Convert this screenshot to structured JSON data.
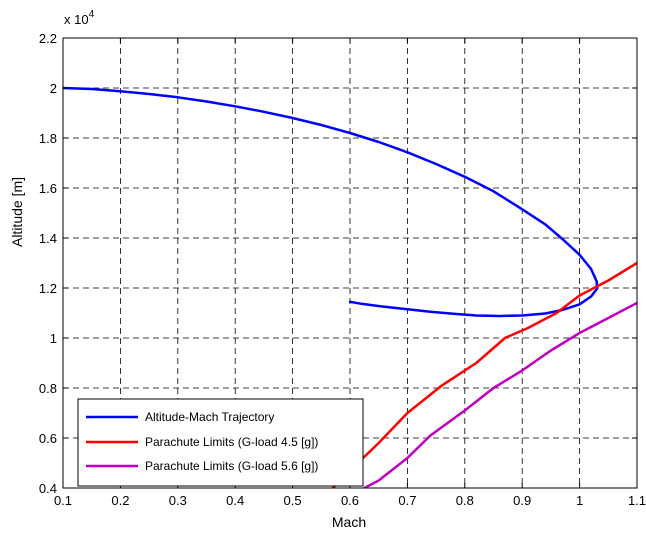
{
  "chart_data": {
    "type": "line",
    "xlabel": "Mach",
    "ylabel": "Altitude [m]",
    "y_exponent_label": {
      "base": "x 10",
      "exp": "4"
    },
    "xlim": [
      0.1,
      1.1
    ],
    "ylim": [
      0.4,
      2.2
    ],
    "xticks": [
      0.1,
      0.2,
      0.3,
      0.4,
      0.5,
      0.6,
      0.7,
      0.8,
      0.9,
      1,
      1.1
    ],
    "xtick_labels": [
      "0.1",
      "0.2",
      "0.3",
      "0.4",
      "0.5",
      "0.6",
      "0.7",
      "0.8",
      "0.9",
      "1",
      "1.1"
    ],
    "yticks": [
      0.4,
      0.6,
      0.8,
      1.0,
      1.2,
      1.4,
      1.6,
      1.8,
      2.0,
      2.2
    ],
    "ytick_labels": [
      "0.4",
      "0.6",
      "0.8",
      "1",
      "1.2",
      "1.4",
      "1.6",
      "1.8",
      "2",
      "2.2"
    ],
    "grid": true,
    "grid_style": "dashed",
    "legend_position": "bottom-left",
    "series": [
      {
        "name": "Altitude-Mach Trajectory",
        "color": "#0000ff",
        "x": [
          0.1,
          0.15,
          0.2,
          0.25,
          0.3,
          0.35,
          0.4,
          0.45,
          0.5,
          0.55,
          0.6,
          0.65,
          0.7,
          0.75,
          0.8,
          0.85,
          0.9,
          0.94,
          0.97,
          1.0,
          1.02,
          1.03,
          1.03,
          1.02,
          1.0,
          0.97,
          0.94,
          0.9,
          0.86,
          0.82,
          0.78,
          0.74,
          0.7,
          0.66,
          0.62,
          0.6
        ],
        "y": [
          2.0,
          1.996,
          1.987,
          1.976,
          1.963,
          1.946,
          1.927,
          1.905,
          1.88,
          1.852,
          1.82,
          1.784,
          1.743,
          1.696,
          1.645,
          1.587,
          1.515,
          1.455,
          1.396,
          1.333,
          1.276,
          1.225,
          1.196,
          1.166,
          1.135,
          1.112,
          1.098,
          1.09,
          1.088,
          1.09,
          1.097,
          1.105,
          1.115,
          1.125,
          1.137,
          1.145
        ]
      },
      {
        "name": "Parachute Limits (G-load 4.5 [g])",
        "color": "#ff0000",
        "x": [
          0.57,
          0.6,
          0.65,
          0.7,
          0.76,
          0.82,
          0.87,
          0.91,
          0.96,
          1.0,
          1.05,
          1.1
        ],
        "y": [
          0.4,
          0.47,
          0.58,
          0.7,
          0.81,
          0.9,
          1.0,
          1.04,
          1.1,
          1.17,
          1.23,
          1.3
        ]
      },
      {
        "name": "Parachute Limits (G-load 5.6 [g])",
        "color": "#c000c0",
        "x": [
          0.625,
          0.65,
          0.7,
          0.74,
          0.8,
          0.85,
          0.9,
          0.95,
          1.0,
          1.05,
          1.1
        ],
        "y": [
          0.4,
          0.43,
          0.52,
          0.61,
          0.71,
          0.8,
          0.87,
          0.95,
          1.02,
          1.08,
          1.14
        ]
      }
    ]
  }
}
